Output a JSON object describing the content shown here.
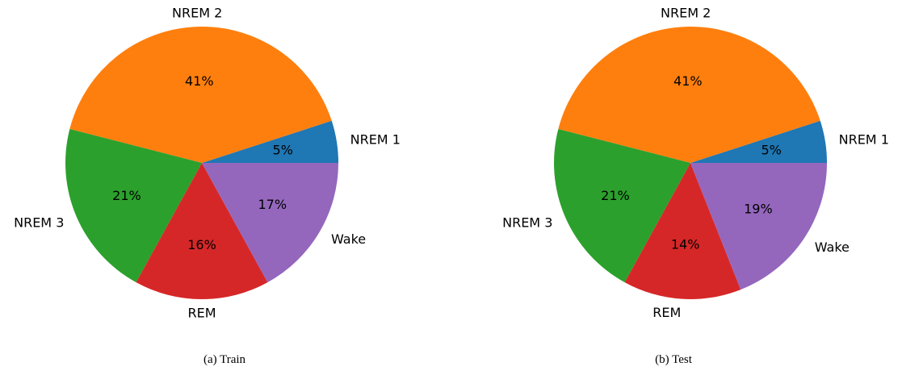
{
  "chart_data": [
    {
      "type": "pie",
      "caption": "(a)  Train",
      "slices": [
        {
          "label": "NREM 1",
          "value": 5,
          "pct_text": "5%",
          "color": "#1f77b4"
        },
        {
          "label": "NREM 2",
          "value": 41,
          "pct_text": "41%",
          "color": "#ff7f0e"
        },
        {
          "label": "NREM 3",
          "value": 21,
          "pct_text": "21%",
          "color": "#2ca02c"
        },
        {
          "label": "REM",
          "value": 16,
          "pct_text": "16%",
          "color": "#d62728"
        },
        {
          "label": "Wake",
          "value": 17,
          "pct_text": "17%",
          "color": "#9467bd"
        }
      ]
    },
    {
      "type": "pie",
      "caption": "(b)  Test",
      "slices": [
        {
          "label": "NREM 1",
          "value": 5,
          "pct_text": "5%",
          "color": "#1f77b4"
        },
        {
          "label": "NREM 2",
          "value": 41,
          "pct_text": "41%",
          "color": "#ff7f0e"
        },
        {
          "label": "NREM 3",
          "value": 21,
          "pct_text": "21%",
          "color": "#2ca02c"
        },
        {
          "label": "REM",
          "value": 14,
          "pct_text": "14%",
          "color": "#d62728"
        },
        {
          "label": "Wake",
          "value": 19,
          "pct_text": "19%",
          "color": "#9467bd"
        }
      ]
    }
  ]
}
